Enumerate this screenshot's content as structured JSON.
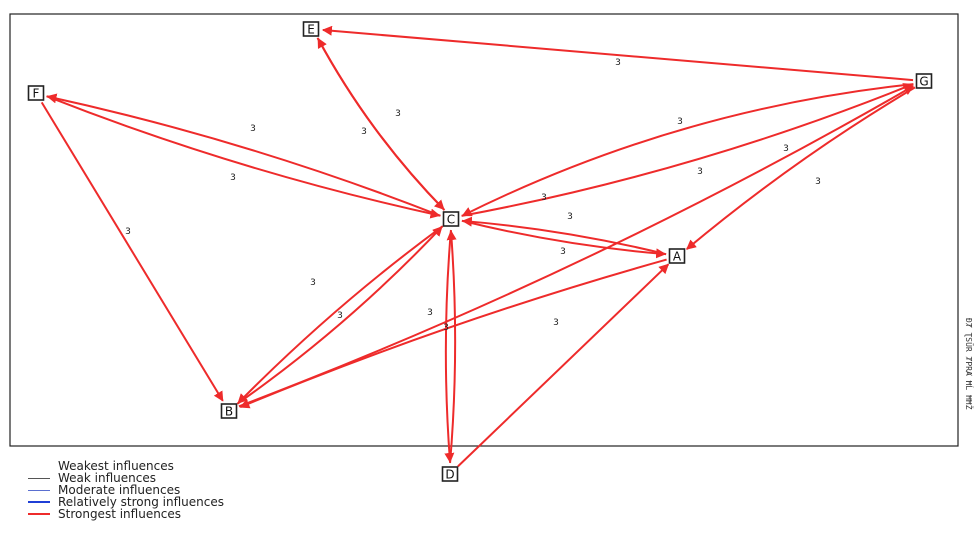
{
  "colors": {
    "strongest": "#ee2b2b",
    "relatively_strong": "#1f3fd6",
    "moderate": "#5a6fd0",
    "weak": "#555555",
    "weakest": "#ffffff"
  },
  "nodes": [
    {
      "id": "E",
      "label": "E"
    },
    {
      "id": "F",
      "label": "F"
    },
    {
      "id": "G",
      "label": "G"
    },
    {
      "id": "C",
      "label": "C"
    },
    {
      "id": "A",
      "label": "A"
    },
    {
      "id": "B",
      "label": "B"
    },
    {
      "id": "D",
      "label": "D"
    }
  ],
  "edges": [
    {
      "from": "G",
      "to": "E",
      "label": "3",
      "strength": "strongest"
    },
    {
      "from": "C",
      "to": "E",
      "label": "3",
      "strength": "strongest"
    },
    {
      "from": "E",
      "to": "C",
      "label": "3",
      "strength": "strongest"
    },
    {
      "from": "C",
      "to": "F",
      "label": "3",
      "strength": "strongest"
    },
    {
      "from": "F",
      "to": "C",
      "label": "3",
      "strength": "strongest"
    },
    {
      "from": "F",
      "to": "B",
      "label": "3",
      "strength": "strongest"
    },
    {
      "from": "G",
      "to": "C",
      "label": "3",
      "strength": "strongest"
    },
    {
      "from": "C",
      "to": "G",
      "label": "3",
      "strength": "strongest"
    },
    {
      "from": "B",
      "to": "G",
      "label": "3",
      "strength": "strongest"
    },
    {
      "from": "G",
      "to": "A",
      "label": "3",
      "strength": "strongest"
    },
    {
      "from": "A",
      "to": "C",
      "label": "3",
      "strength": "strongest"
    },
    {
      "from": "C",
      "to": "A",
      "label": "3",
      "strength": "strongest"
    },
    {
      "from": "C",
      "to": "B",
      "label": "3",
      "strength": "strongest"
    },
    {
      "from": "B",
      "to": "C",
      "label": "3",
      "strength": "strongest"
    },
    {
      "from": "A",
      "to": "B",
      "label": "3",
      "strength": "strongest"
    },
    {
      "from": "C",
      "to": "D",
      "label": "3",
      "strength": "strongest"
    },
    {
      "from": "D",
      "to": "C",
      "label": "3",
      "strength": "strongest"
    },
    {
      "from": "D",
      "to": "A",
      "label": "3",
      "strength": "strongest"
    }
  ],
  "side_text": "ĐȾ ƮSŪR ȾPRȺ ĦĹ ĦĦŽ",
  "legend": [
    {
      "label": "Weakest influences",
      "strength": "weakest"
    },
    {
      "label": "Weak influences",
      "strength": "weak"
    },
    {
      "label": "Moderate influences",
      "strength": "moderate"
    },
    {
      "label": "Relatively strong influences",
      "strength": "relatively_strong"
    },
    {
      "label": "Strongest influences",
      "strength": "strongest"
    }
  ]
}
